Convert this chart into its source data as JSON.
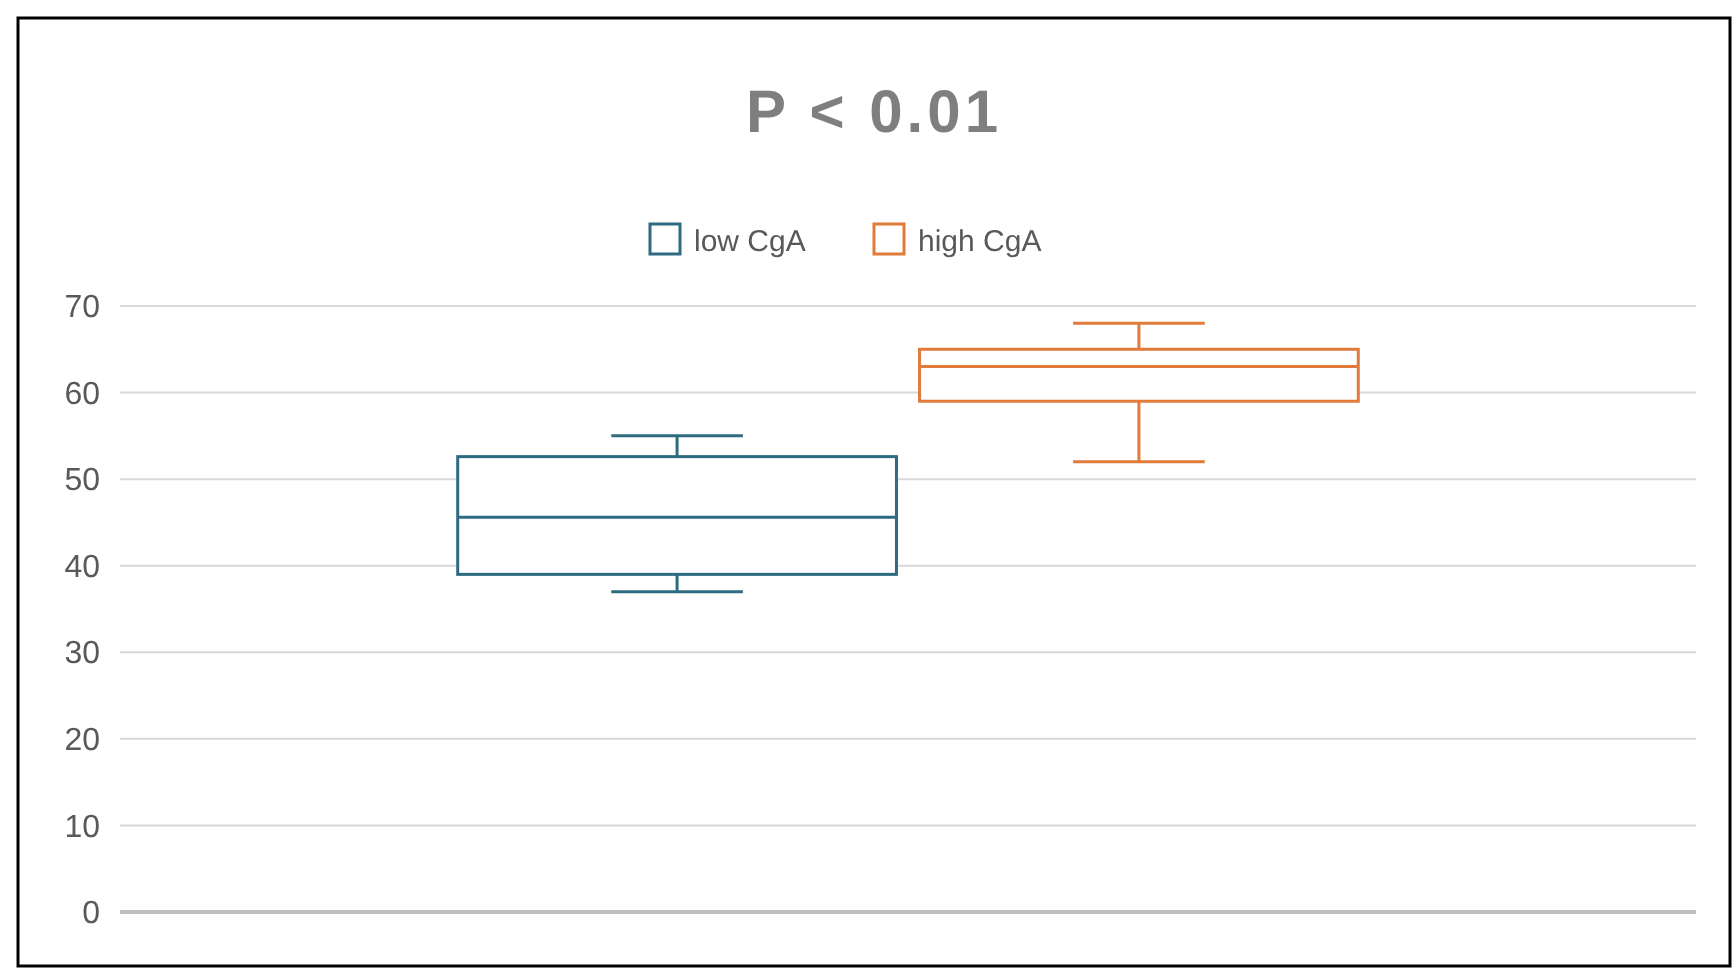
{
  "chart_data": {
    "type": "box",
    "title": "P < 0.01",
    "categories": [
      null
    ],
    "series": [
      {
        "name": "low CgA",
        "color": "#2e6b80",
        "boxes": [
          {
            "low": 37,
            "q1": 39,
            "median": 45.6,
            "q3": 52.6,
            "high": 55
          }
        ]
      },
      {
        "name": "high CgA",
        "color": "#e07b39",
        "boxes": [
          {
            "low": 52,
            "q1": 59,
            "median": 63,
            "q3": 65,
            "high": 68
          }
        ]
      }
    ],
    "ylim": [
      0,
      70
    ],
    "yticks": [
      0,
      10,
      20,
      30,
      40,
      50,
      60,
      70
    ],
    "grid": "y",
    "legend": "top"
  }
}
